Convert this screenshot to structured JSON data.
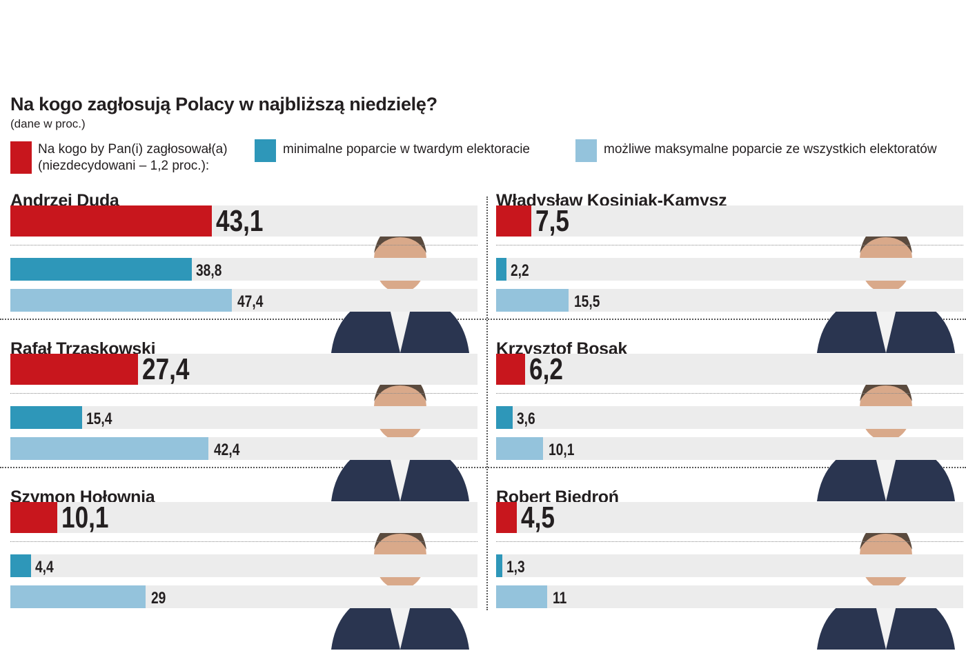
{
  "chart_data": {
    "type": "bar",
    "title": "Na kogo zagłosują Polacy w najbliższą niedzielę?",
    "subtitle": "(dane w proc.)",
    "legend": [
      {
        "label": "Na kogo by Pan(i) zagłosował(a)",
        "label2": "(niezdecydowani – 1,2 proc.):",
        "color": "#c8161d"
      },
      {
        "label": "minimalne poparcie w twardym elektoracie",
        "color": "#2e97b9"
      },
      {
        "label": "możliwe maksymalne poparcie ze wszystkich elektoratów",
        "color": "#94c3dc"
      }
    ],
    "xlim": [
      0,
      100
    ],
    "candidates": [
      {
        "name": "Andrzej Duda",
        "vote": 43.1,
        "min": 38.8,
        "max": 47.4,
        "vote_label": "43,1",
        "min_label": "38,8",
        "max_label": "47,4"
      },
      {
        "name": "Władysław Kosiniak-Kamysz",
        "vote": 7.5,
        "min": 2.2,
        "max": 15.5,
        "vote_label": "7,5",
        "min_label": "2,2",
        "max_label": "15,5"
      },
      {
        "name": "Rafał Trzaskowski",
        "vote": 27.4,
        "min": 15.4,
        "max": 42.4,
        "vote_label": "27,4",
        "min_label": "15,4",
        "max_label": "42,4"
      },
      {
        "name": "Krzysztof Bosak",
        "vote": 6.2,
        "min": 3.6,
        "max": 10.1,
        "vote_label": "6,2",
        "min_label": "3,6",
        "max_label": "10,1"
      },
      {
        "name": "Szymon Hołownia",
        "vote": 10.1,
        "min": 4.4,
        "max": 29,
        "vote_label": "10,1",
        "min_label": "4,4",
        "max_label": "29"
      },
      {
        "name": "Robert Biedroń",
        "vote": 4.5,
        "min": 1.3,
        "max": 11,
        "vote_label": "4,5",
        "min_label": "1,3",
        "max_label": "11"
      }
    ]
  }
}
